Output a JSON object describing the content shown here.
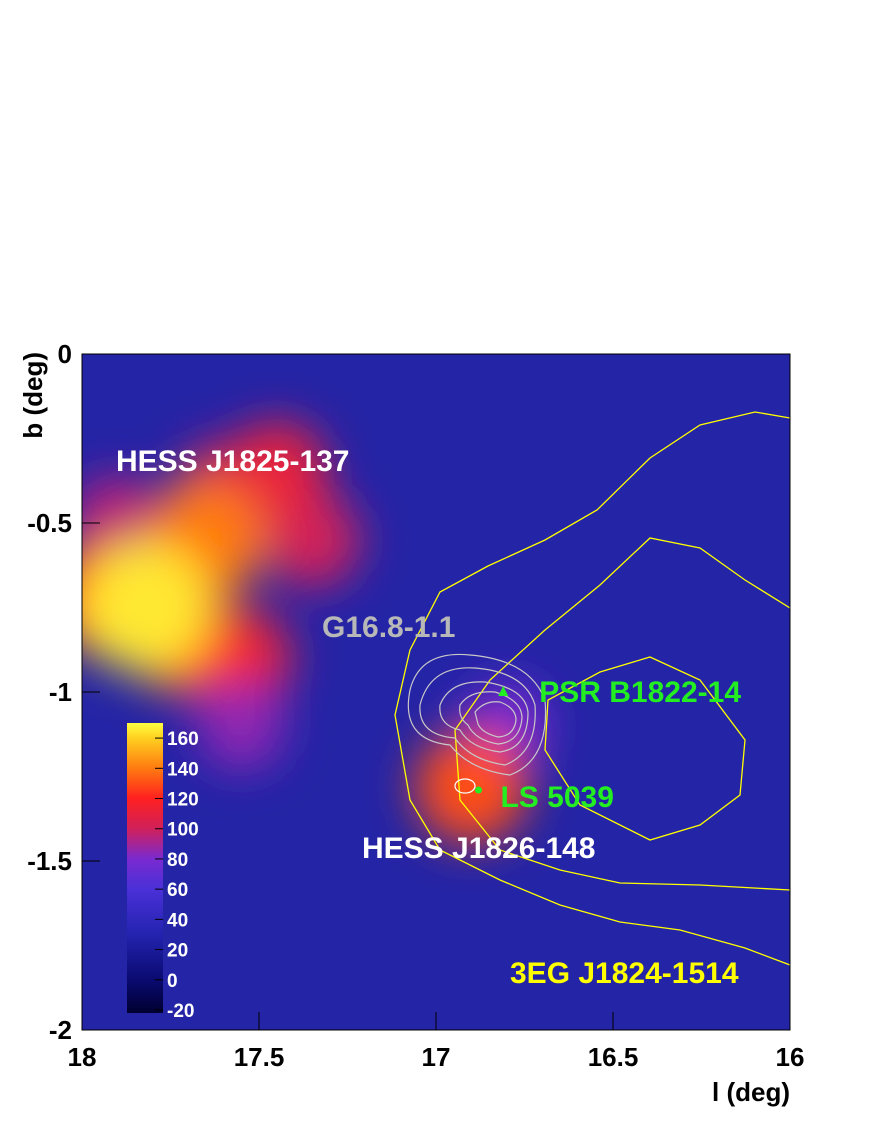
{
  "chart_data": {
    "type": "heatmap",
    "xlabel": "l (deg)",
    "ylabel": "b (deg)",
    "xlim": [
      18,
      16
    ],
    "ylim": [
      -2,
      0
    ],
    "xticks": [
      18,
      17.5,
      17,
      16.5,
      16
    ],
    "yticks": [
      0,
      -0.5,
      -1,
      -1.5,
      -2
    ],
    "zlim": [
      -22,
      170
    ],
    "zticks": [
      -20,
      0,
      20,
      40,
      60,
      80,
      100,
      120,
      140,
      160
    ],
    "colorscale": [
      [
        -22,
        "#000030"
      ],
      [
        0,
        "#0a0a70"
      ],
      [
        30,
        "#2323b0"
      ],
      [
        60,
        "#4a30d8"
      ],
      [
        80,
        "#7a2ad0"
      ],
      [
        100,
        "#d0205a"
      ],
      [
        120,
        "#ff2020"
      ],
      [
        140,
        "#ff7a10"
      ],
      [
        160,
        "#ffd020"
      ],
      [
        170,
        "#ffff40"
      ]
    ],
    "peaks": {
      "x": [
        17.9,
        17.6,
        17.55,
        17.35,
        17.45,
        17.55,
        16.8,
        17.95,
        17.7,
        17.65,
        16.9,
        17.82
      ],
      "y": [
        -0.5,
        -0.4,
        -0.9,
        -0.55,
        -0.35,
        -1.1,
        -1.1,
        -0.72,
        -0.85,
        -0.55,
        -1.28,
        -0.75
      ],
      "values": [
        95,
        100,
        110,
        100,
        110,
        85,
        80,
        130,
        125,
        140,
        130,
        165
      ]
    },
    "sources": [
      {
        "name": "PSR B1822-14",
        "x": 16.81,
        "y": -1.0,
        "color": "#22ee22"
      },
      {
        "name": "LS 5039",
        "x": 16.88,
        "y": -1.29,
        "color": "#22ee22"
      }
    ],
    "annotations": [
      {
        "text": "HESS J1825-137",
        "color": "#ffffff"
      },
      {
        "text": "G16.8-1.1",
        "color": "#b8b8b8"
      },
      {
        "text": "HESS J1826-148",
        "color": "#ffffff"
      },
      {
        "text": "3EG J1824-1514",
        "color": "#ffff00"
      }
    ]
  }
}
